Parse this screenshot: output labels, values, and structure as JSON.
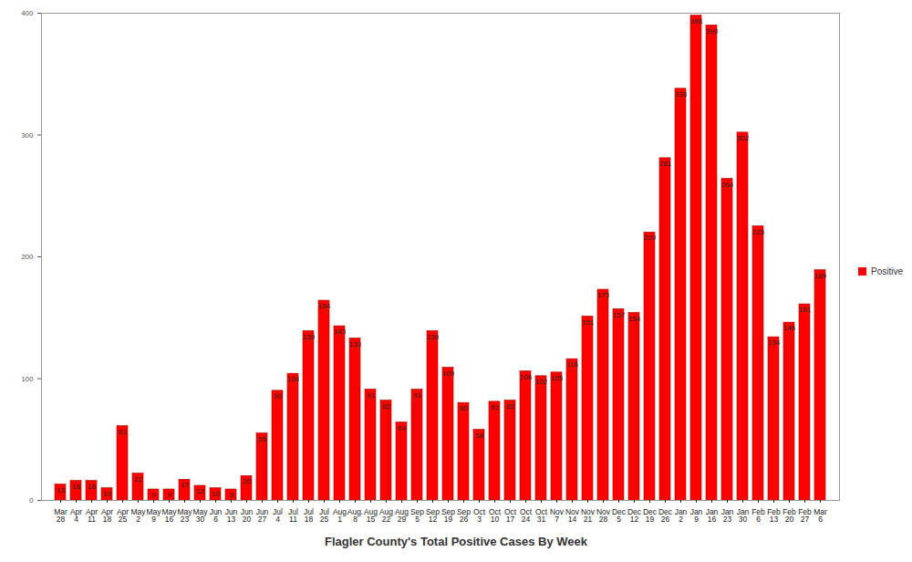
{
  "chart_data": {
    "type": "bar",
    "title": "Flagler County's Total Positive Cases By Week",
    "categories": [
      "Mar 28",
      "Apr 4",
      "Apr 11",
      "Apr 18",
      "Apr 25",
      "May 2",
      "May 9",
      "May 16",
      "May 23",
      "May 30",
      "Jun 6",
      "Jun 13",
      "Jun 20",
      "Jun 27",
      "Jul 4",
      "Jul 11",
      "Jul 18",
      "Jul 25",
      "Aug 1",
      "Aug. 8",
      "Aug 15",
      "Aug 22",
      "Aug 29",
      "Sep 5",
      "Sep 12",
      "Sep 19",
      "Sep 26",
      "Oct 3",
      "Oct 10",
      "Oct 17",
      "Oct 24",
      "Oct 31",
      "Nov 7",
      "Nov 14",
      "Nov 21",
      "Nov 28",
      "Dec 5",
      "Dec 12",
      "Dec 19",
      "Dec 26",
      "Jan 2",
      "Jan 9",
      "Jan 16",
      "Jan 23",
      "Jan 30",
      "Feb 6",
      "Feb 13",
      "Feb 20",
      "Feb 27",
      "Mar 6"
    ],
    "series": [
      {
        "name": "Positive",
        "color": "#ff0000",
        "values": [
          13,
          16,
          16,
          10,
          61,
          22,
          9,
          9,
          17,
          12,
          10,
          9,
          20,
          55,
          90,
          104,
          139,
          164,
          143,
          133,
          91,
          82,
          64,
          91,
          139,
          109,
          80,
          58,
          81,
          82,
          106,
          102,
          105,
          116,
          151,
          173,
          157,
          154,
          220,
          281,
          338,
          398,
          390,
          264,
          302,
          225,
          134,
          146,
          161,
          189
        ]
      }
    ],
    "ylim": [
      0,
      400
    ],
    "yticks": [
      0,
      100,
      200,
      300,
      400
    ],
    "grid": false,
    "legend": "right",
    "data_labels": true
  }
}
